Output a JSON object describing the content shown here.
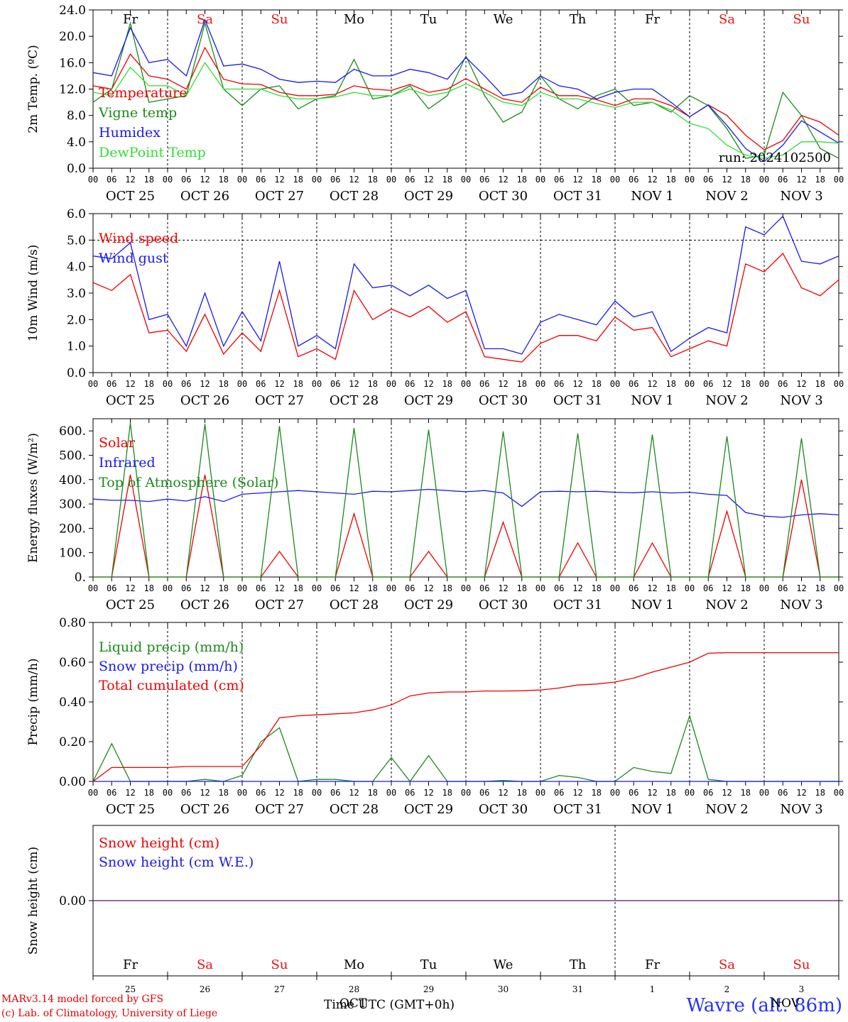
{
  "colors": {
    "red": "#ee0000",
    "green": "#1a8a1a",
    "blue": "#1a1aee",
    "lightgreen": "#33dd33",
    "purple": "#7a2a8a",
    "weekend": "#ee1111",
    "axis": "#000000"
  },
  "days": {
    "names": [
      "Fr",
      "Sa",
      "Su",
      "Mo",
      "Tu",
      "We",
      "Th",
      "Fr",
      "Sa",
      "Su"
    ],
    "weekend": [
      false,
      true,
      true,
      false,
      false,
      false,
      false,
      false,
      true,
      true
    ],
    "dates": [
      "OCT 25",
      "OCT 26",
      "OCT 27",
      "OCT 28",
      "OCT 29",
      "OCT 30",
      "OCT 31",
      "NOV  1",
      "NOV  2",
      "NOV  3"
    ],
    "numbers": [
      "25",
      "26",
      "27",
      "28",
      "29",
      "30",
      "31",
      "1",
      "2",
      "3"
    ],
    "hour_ticks": [
      "00",
      "06",
      "12",
      "18"
    ],
    "final_tick": "00"
  },
  "chart_data": [
    {
      "type": "line",
      "ylabel": "2m Temp. (ºC)",
      "ylim": [
        0,
        24
      ],
      "yticks": [
        "0.0",
        "4.0",
        "8.0",
        "12.0",
        "16.0",
        "20.0",
        "24.0"
      ],
      "annotation": "run: 2024102500",
      "hline": null,
      "x_hours": [
        0,
        6,
        12,
        18,
        24,
        30,
        36,
        42,
        48,
        54,
        60,
        66,
        72,
        78,
        84,
        90,
        96,
        102,
        108,
        114,
        120,
        126,
        132,
        138,
        144,
        150,
        156,
        162,
        168,
        174,
        180,
        186,
        192,
        198,
        204,
        210,
        216,
        222,
        228,
        234,
        240
      ],
      "series": [
        {
          "name": "Temperature",
          "color": "red",
          "values": [
            12.5,
            12.0,
            17.3,
            14.0,
            13.5,
            12.0,
            18.3,
            13.5,
            12.8,
            12.7,
            11.5,
            11.0,
            11.0,
            11.2,
            12.5,
            12.0,
            11.8,
            12.7,
            11.5,
            12.0,
            13.6,
            12.0,
            10.5,
            10.0,
            12.3,
            11.0,
            11.0,
            10.4,
            9.5,
            10.5,
            10.5,
            9.5,
            7.8,
            9.6,
            8.0,
            5.0,
            2.8,
            4.2,
            8.0,
            7.0,
            5.0
          ]
        },
        {
          "name": "Vigne temp",
          "color": "green",
          "values": [
            10.0,
            12.0,
            22.0,
            10.0,
            10.5,
            11.0,
            22.0,
            12.0,
            9.5,
            12.0,
            12.5,
            9.0,
            10.5,
            11.0,
            16.5,
            10.5,
            11.0,
            12.5,
            9.0,
            11.0,
            17.0,
            11.0,
            7.0,
            8.5,
            14.0,
            10.5,
            9.0,
            11.0,
            12.0,
            9.5,
            10.0,
            8.5,
            11.0,
            9.5,
            6.0,
            1.5,
            2.0,
            11.5,
            8.0,
            3.0,
            1.5
          ]
        },
        {
          "name": "Humidex",
          "color": "blue",
          "values": [
            14.5,
            14.0,
            21.3,
            16.0,
            16.5,
            14.0,
            22.5,
            15.5,
            15.8,
            15.0,
            13.5,
            13.0,
            13.2,
            13.0,
            15.0,
            14.0,
            14.0,
            15.0,
            14.5,
            13.5,
            16.8,
            14.0,
            11.0,
            11.5,
            14.0,
            12.5,
            12.0,
            10.5,
            11.5,
            12.0,
            12.0,
            10.0,
            7.8,
            9.6,
            6.5,
            3.0,
            1.0,
            3.5,
            7.2,
            5.5,
            3.8
          ]
        },
        {
          "name": "DewPoint Temp",
          "color": "lightgreen",
          "values": [
            11.5,
            11.0,
            15.3,
            12.5,
            12.5,
            11.0,
            16.0,
            12.0,
            12.0,
            12.0,
            11.0,
            10.5,
            10.5,
            10.8,
            11.5,
            11.0,
            11.0,
            12.0,
            11.0,
            11.5,
            12.8,
            11.5,
            10.0,
            9.5,
            11.5,
            10.5,
            10.5,
            9.8,
            9.2,
            10.0,
            10.0,
            8.8,
            6.8,
            6.0,
            3.5,
            2.0,
            1.5,
            2.0,
            4.0,
            4.0,
            3.8
          ]
        }
      ]
    },
    {
      "type": "line",
      "ylabel": "10m Wind (m/s)",
      "ylim": [
        0,
        6
      ],
      "yticks": [
        "0.0",
        "1.0",
        "2.0",
        "3.0",
        "4.0",
        "5.0",
        "6.0"
      ],
      "hline": 5.0,
      "x_hours": [
        0,
        6,
        12,
        18,
        24,
        30,
        36,
        42,
        48,
        54,
        60,
        66,
        72,
        78,
        84,
        90,
        96,
        102,
        108,
        114,
        120,
        126,
        132,
        138,
        144,
        150,
        156,
        162,
        168,
        174,
        180,
        186,
        192,
        198,
        204,
        210,
        216,
        222,
        228,
        234,
        240
      ],
      "series": [
        {
          "name": "Wind speed",
          "color": "red",
          "values": [
            3.4,
            3.1,
            3.7,
            1.5,
            1.6,
            0.8,
            2.2,
            0.7,
            1.5,
            0.8,
            3.1,
            0.6,
            0.9,
            0.5,
            3.1,
            2.0,
            2.4,
            2.1,
            2.5,
            1.9,
            2.3,
            0.6,
            0.5,
            0.4,
            1.1,
            1.4,
            1.4,
            1.2,
            2.1,
            1.6,
            1.7,
            0.6,
            0.9,
            1.2,
            1.0,
            4.1,
            3.8,
            4.5,
            3.2,
            2.9,
            3.5
          ]
        },
        {
          "name": "Wind gust",
          "color": "blue",
          "values": [
            4.4,
            4.3,
            4.9,
            2.0,
            2.2,
            1.0,
            3.0,
            1.0,
            2.3,
            1.2,
            4.2,
            1.0,
            1.4,
            0.9,
            4.1,
            3.2,
            3.3,
            2.9,
            3.3,
            2.8,
            3.1,
            0.9,
            0.9,
            0.7,
            1.9,
            2.2,
            2.0,
            1.8,
            2.7,
            2.1,
            2.3,
            0.8,
            1.3,
            1.7,
            1.5,
            5.5,
            5.2,
            5.9,
            4.2,
            4.1,
            4.4
          ]
        }
      ]
    },
    {
      "type": "line",
      "ylabel": "Energy fluxes (W/m²)",
      "ylim": [
        0,
        650
      ],
      "yticks": [
        "0.",
        "100.",
        "200.",
        "300.",
        "400.",
        "500.",
        "600."
      ],
      "hline": null,
      "x_hours": [
        0,
        6,
        12,
        18,
        24,
        30,
        36,
        42,
        48,
        54,
        60,
        66,
        72,
        78,
        84,
        90,
        96,
        102,
        108,
        114,
        120,
        126,
        132,
        138,
        144,
        150,
        156,
        162,
        168,
        174,
        180,
        186,
        192,
        198,
        204,
        210,
        216,
        222,
        228,
        234,
        240
      ],
      "series": [
        {
          "name": "Solar",
          "color": "red",
          "values": [
            0,
            0,
            420,
            0,
            0,
            0,
            420,
            0,
            0,
            0,
            105,
            0,
            0,
            0,
            260,
            0,
            0,
            0,
            105,
            0,
            0,
            0,
            225,
            0,
            0,
            0,
            140,
            0,
            0,
            0,
            140,
            0,
            0,
            0,
            270,
            0,
            0,
            0,
            400,
            0,
            0
          ]
        },
        {
          "name": "Infrared",
          "color": "blue",
          "values": [
            320,
            315,
            315,
            310,
            320,
            312,
            330,
            310,
            340,
            345,
            350,
            355,
            350,
            345,
            340,
            352,
            350,
            355,
            360,
            355,
            350,
            355,
            345,
            290,
            350,
            352,
            350,
            352,
            348,
            346,
            350,
            345,
            348,
            340,
            335,
            265,
            250,
            245,
            255,
            260,
            255
          ]
        },
        {
          "name": "Top of Atmosphere (Solar)",
          "color": "green",
          "values": [
            0,
            0,
            632,
            0,
            0,
            0,
            628,
            0,
            0,
            0,
            620,
            0,
            0,
            0,
            612,
            0,
            0,
            0,
            605,
            0,
            0,
            0,
            598,
            0,
            0,
            0,
            590,
            0,
            0,
            0,
            585,
            0,
            0,
            0,
            578,
            0,
            0,
            0,
            570,
            0,
            0
          ]
        }
      ]
    },
    {
      "type": "line",
      "ylabel": "Precip (mm/h)",
      "ylim": [
        0,
        0.8
      ],
      "yticks": [
        "0.00",
        "0.20",
        "0.40",
        "0.60",
        "0.80"
      ],
      "hline": null,
      "x_hours": [
        0,
        6,
        12,
        18,
        24,
        30,
        36,
        42,
        48,
        54,
        60,
        66,
        72,
        78,
        84,
        90,
        96,
        102,
        108,
        114,
        120,
        126,
        132,
        138,
        144,
        150,
        156,
        162,
        168,
        174,
        180,
        186,
        192,
        198,
        204,
        210,
        216,
        222,
        228,
        234,
        240
      ],
      "series": [
        {
          "name": "Liquid precip (mm/h)",
          "color": "green",
          "values": [
            0,
            0.19,
            0,
            0,
            0,
            0,
            0.01,
            0,
            0.03,
            0.2,
            0.27,
            0,
            0.01,
            0.01,
            0,
            0,
            0.12,
            0,
            0.13,
            0,
            0,
            0,
            0.005,
            0,
            0,
            0.03,
            0.02,
            0,
            0,
            0.07,
            0.05,
            0.04,
            0.33,
            0.01,
            0,
            0,
            0,
            0,
            0,
            0,
            0
          ]
        },
        {
          "name": "Snow precip (mm/h)",
          "color": "blue",
          "values": [
            0,
            0,
            0,
            0,
            0,
            0,
            0,
            0,
            0,
            0,
            0,
            0,
            0,
            0,
            0,
            0,
            0,
            0,
            0,
            0,
            0,
            0,
            0,
            0,
            0,
            0,
            0,
            0,
            0,
            0,
            0,
            0,
            0,
            0,
            0,
            0,
            0,
            0,
            0,
            0,
            0
          ]
        },
        {
          "name": "Total cumulated (cm)",
          "color": "red",
          "values": [
            0,
            0.07,
            0.07,
            0.07,
            0.07,
            0.075,
            0.075,
            0.075,
            0.075,
            0.18,
            0.32,
            0.33,
            0.335,
            0.34,
            0.345,
            0.36,
            0.385,
            0.43,
            0.445,
            0.45,
            0.45,
            0.455,
            0.455,
            0.456,
            0.46,
            0.47,
            0.485,
            0.49,
            0.5,
            0.52,
            0.55,
            0.575,
            0.6,
            0.645,
            0.648,
            0.648,
            0.648,
            0.648,
            0.648,
            0.648,
            0.648
          ]
        }
      ]
    },
    {
      "type": "line",
      "ylabel": "Snow height (cm)",
      "ylim": [
        -1,
        1
      ],
      "yticks": [
        "0.00"
      ],
      "hline": null,
      "x_hours": [
        0,
        240
      ],
      "series": [
        {
          "name": "Snow height (cm)",
          "color": "red",
          "values": [
            0,
            0
          ]
        },
        {
          "name": "Snow height (cm W.E.)",
          "color": "blue",
          "values": [
            0,
            0
          ]
        }
      ]
    }
  ],
  "footer": {
    "credit_line1": "MARv3.14 model forced by GFS",
    "credit_line2": "(c) Lab. of Climatology, University of Liege",
    "time_label": "Time UTC (GMT+0h)",
    "time_overlap": "OCT",
    "nov_overlap": "NOV",
    "station": "Wavre (alt. 86m)"
  }
}
